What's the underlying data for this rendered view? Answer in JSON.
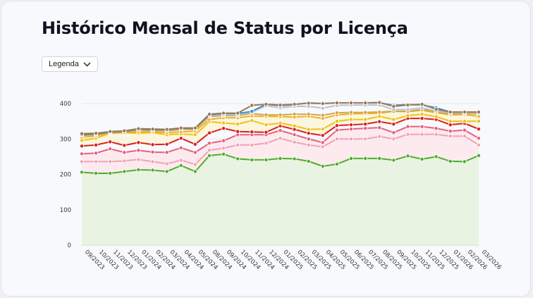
{
  "page": {
    "title": "Histórico Mensal de Status por Licença",
    "legend_button": "Legenda",
    "legend_icon": "chevron-down-icon"
  },
  "chart_data": {
    "type": "area",
    "title": "",
    "xlabel": "",
    "ylabel": "",
    "ylim": [
      0,
      400
    ],
    "yticks": [
      0,
      100,
      200,
      300,
      400
    ],
    "grid": true,
    "legend": "collapsed",
    "categories": [
      "09/2023",
      "10/2023",
      "11/2023",
      "12/2023",
      "01/2024",
      "02/2024",
      "03/2024",
      "04/2024",
      "05/2024",
      "08/2024",
      "09/2024",
      "10/2024",
      "11/2024",
      "12/2024",
      "01/2025",
      "02/2025",
      "03/2025",
      "04/2025",
      "05/2025",
      "06/2025",
      "07/2025",
      "08/2025",
      "09/2025",
      "10/2025",
      "11/2025",
      "12/2025",
      "01/2026",
      "02/2026",
      "03/2026"
    ],
    "series": [
      {
        "color": "#4caf2a",
        "fill": "#e6f2dc",
        "values": [
          206,
          203,
          203,
          208,
          213,
          212,
          208,
          225,
          208,
          253,
          257,
          244,
          241,
          241,
          245,
          244,
          237,
          223,
          229,
          245,
          245,
          245,
          240,
          252,
          243,
          250,
          237,
          236,
          253
        ]
      },
      {
        "color": "#f0a3b5",
        "fill": "#fde8ec",
        "values": [
          236,
          236,
          236,
          238,
          242,
          236,
          230,
          240,
          228,
          268,
          274,
          283,
          283,
          288,
          302,
          291,
          283,
          278,
          300,
          300,
          300,
          307,
          300,
          313,
          313,
          313,
          308,
          308,
          283
        ]
      },
      {
        "color": "#e8607a",
        "fill": "#fde8ec",
        "values": [
          258,
          260,
          272,
          262,
          268,
          263,
          262,
          275,
          262,
          288,
          295,
          312,
          312,
          312,
          324,
          312,
          300,
          290,
          325,
          328,
          330,
          332,
          318,
          335,
          335,
          330,
          322,
          325,
          302
        ]
      },
      {
        "color": "#d9201f",
        "fill": null,
        "values": [
          280,
          283,
          292,
          282,
          290,
          284,
          285,
          302,
          285,
          317,
          330,
          321,
          320,
          319,
          337,
          327,
          316,
          310,
          338,
          340,
          342,
          349,
          342,
          358,
          358,
          355,
          340,
          344,
          328
        ]
      },
      {
        "color": "#eec21a",
        "fill": "#fdf6d8",
        "values": [
          296,
          302,
          316,
          318,
          316,
          318,
          312,
          314,
          312,
          349,
          345,
          342,
          352,
          340,
          345,
          337,
          327,
          328,
          350,
          355,
          355,
          364,
          355,
          366,
          370,
          363,
          350,
          350,
          350
        ]
      },
      {
        "color": "#f2ae28",
        "fill": "#fdf6d8",
        "values": [
          305,
          308,
          318,
          318,
          320,
          320,
          318,
          320,
          322,
          355,
          360,
          360,
          365,
          364,
          363,
          362,
          364,
          358,
          368,
          371,
          372,
          373,
          378,
          377,
          381,
          374,
          368,
          369,
          364
        ]
      },
      {
        "color": "#d2a640",
        "fill": null,
        "values": [
          310,
          312,
          318,
          318,
          325,
          324,
          323,
          327,
          327,
          363,
          366,
          366,
          372,
          368,
          368,
          370,
          370,
          367,
          374,
          375,
          375,
          376,
          378,
          378,
          383,
          377,
          371,
          372,
          371
        ]
      },
      {
        "color": "#b9c2cf",
        "fill": null,
        "values": [
          312,
          314,
          320,
          322,
          328,
          326,
          326,
          330,
          330,
          365,
          368,
          368,
          376,
          394,
          388,
          392,
          392,
          387,
          395,
          396,
          396,
          396,
          383,
          383,
          388,
          379,
          374,
          374,
          374
        ]
      },
      {
        "color": "#3d8fd0",
        "fill": null,
        "values": [
          312,
          314,
          320,
          322,
          328,
          326,
          326,
          330,
          330,
          368,
          372,
          372,
          378,
          398,
          394,
          397,
          402,
          400,
          402,
          402,
          402,
          402,
          395,
          397,
          396,
          388,
          376,
          376,
          376
        ]
      },
      {
        "color": "#9b7a55",
        "fill": null,
        "values": [
          315,
          316,
          321,
          323,
          329,
          328,
          327,
          331,
          331,
          370,
          373,
          373,
          395,
          398,
          396,
          398,
          401,
          400,
          402,
          402,
          402,
          403,
          392,
          396,
          398,
          384,
          376,
          376,
          376
        ]
      }
    ]
  }
}
